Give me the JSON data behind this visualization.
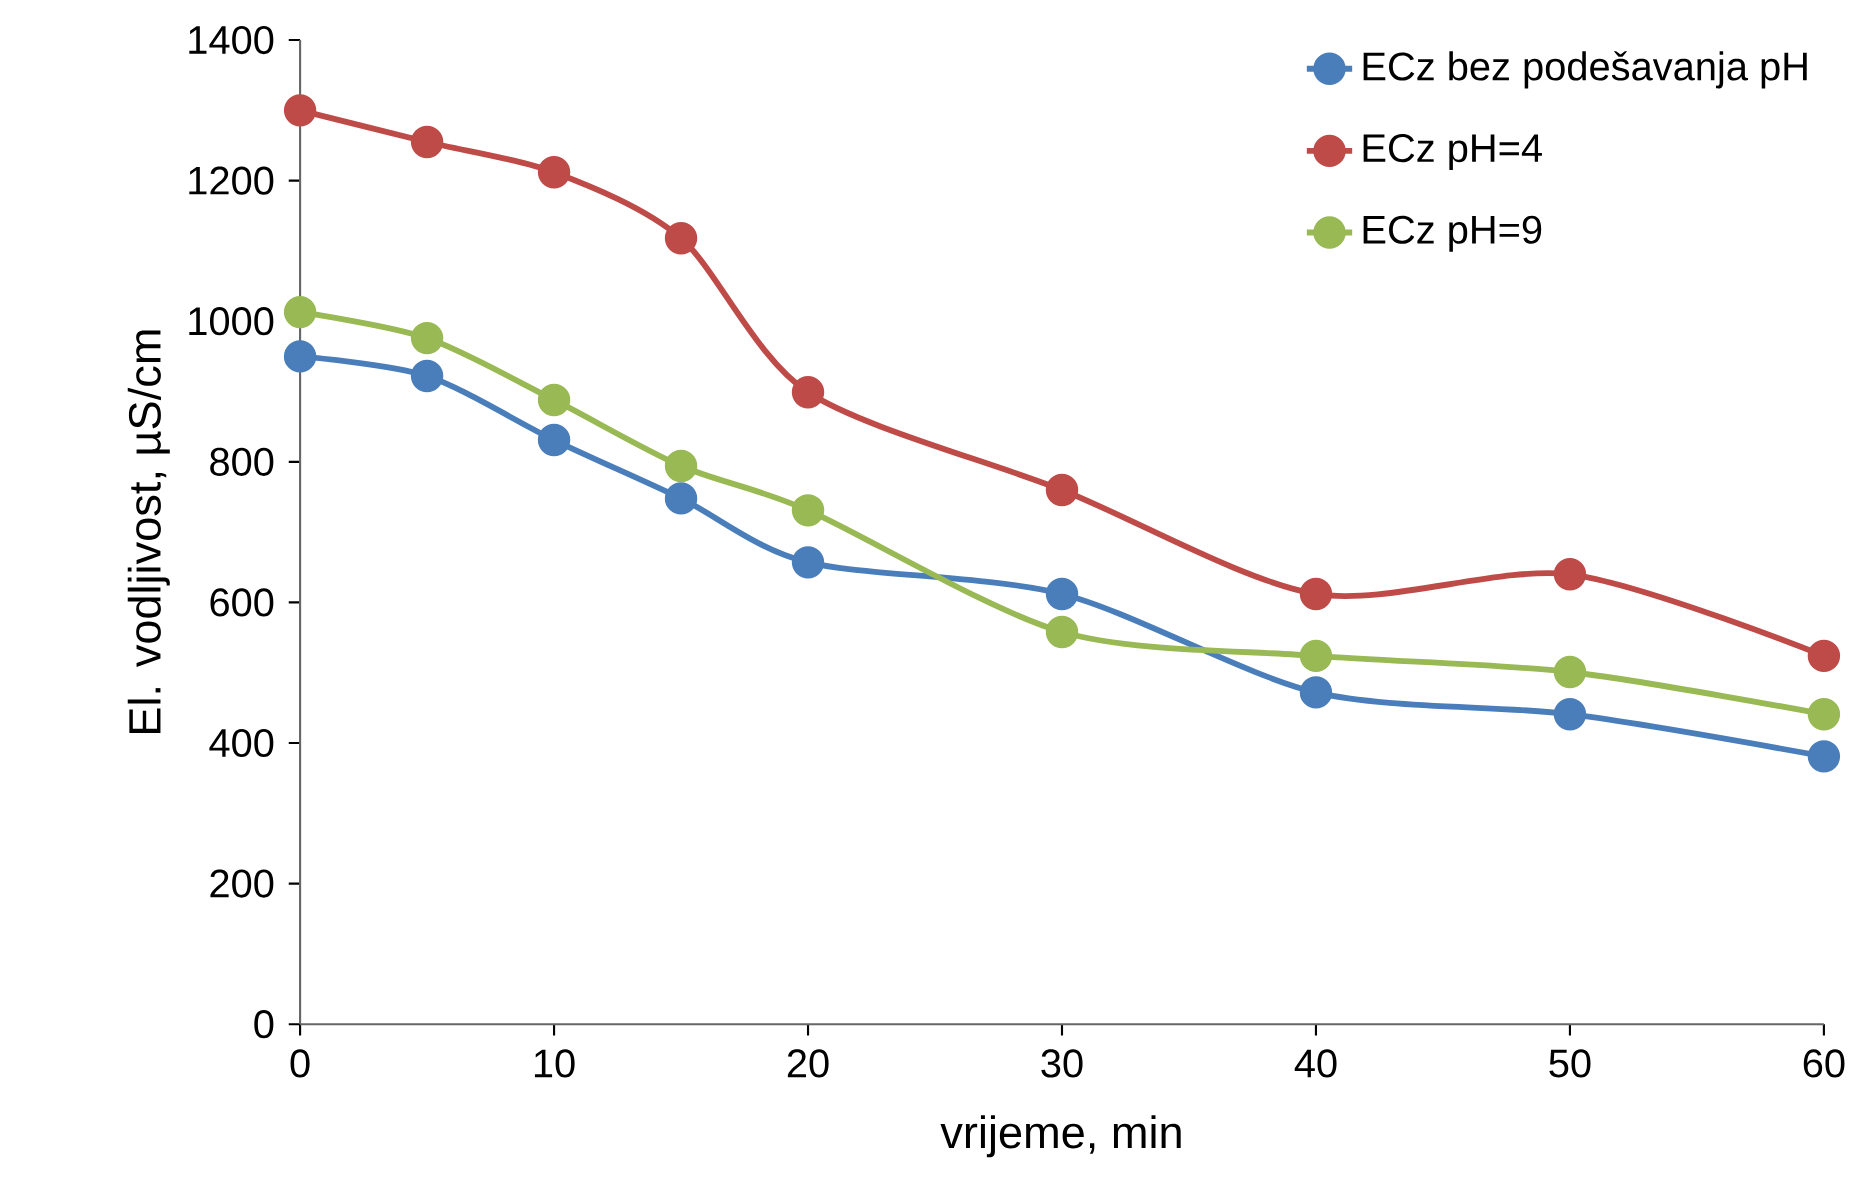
{
  "chart_data": {
    "type": "line",
    "xlabel": "vrijeme, min",
    "ylabel": "El. vodljivost, µS/cm",
    "x": [
      0,
      5,
      10,
      15,
      20,
      30,
      40,
      50,
      60
    ],
    "series": [
      {
        "name": "ECz bez podešavanja pH",
        "color": "#4a7ebb",
        "values": [
          950,
          922,
          831,
          748,
          657,
          612,
          472,
          441,
          381
        ]
      },
      {
        "name": "ECz pH=4",
        "color": "#be4b48",
        "values": [
          1300,
          1255,
          1212,
          1118,
          899,
          760,
          612,
          640,
          524
        ]
      },
      {
        "name": "ECz pH=9",
        "color": "#98b954",
        "values": [
          1013,
          976,
          888,
          794,
          731,
          558,
          524,
          501,
          441
        ]
      }
    ],
    "xlim": [
      0,
      60
    ],
    "ylim": [
      0,
      1400
    ],
    "xticks": [
      0,
      10,
      20,
      30,
      40,
      50,
      60
    ],
    "yticks": [
      0,
      200,
      400,
      600,
      800,
      1000,
      1200,
      1400
    ],
    "marker": "circle",
    "line_style": "solid",
    "grid": false,
    "legend": "top right"
  }
}
